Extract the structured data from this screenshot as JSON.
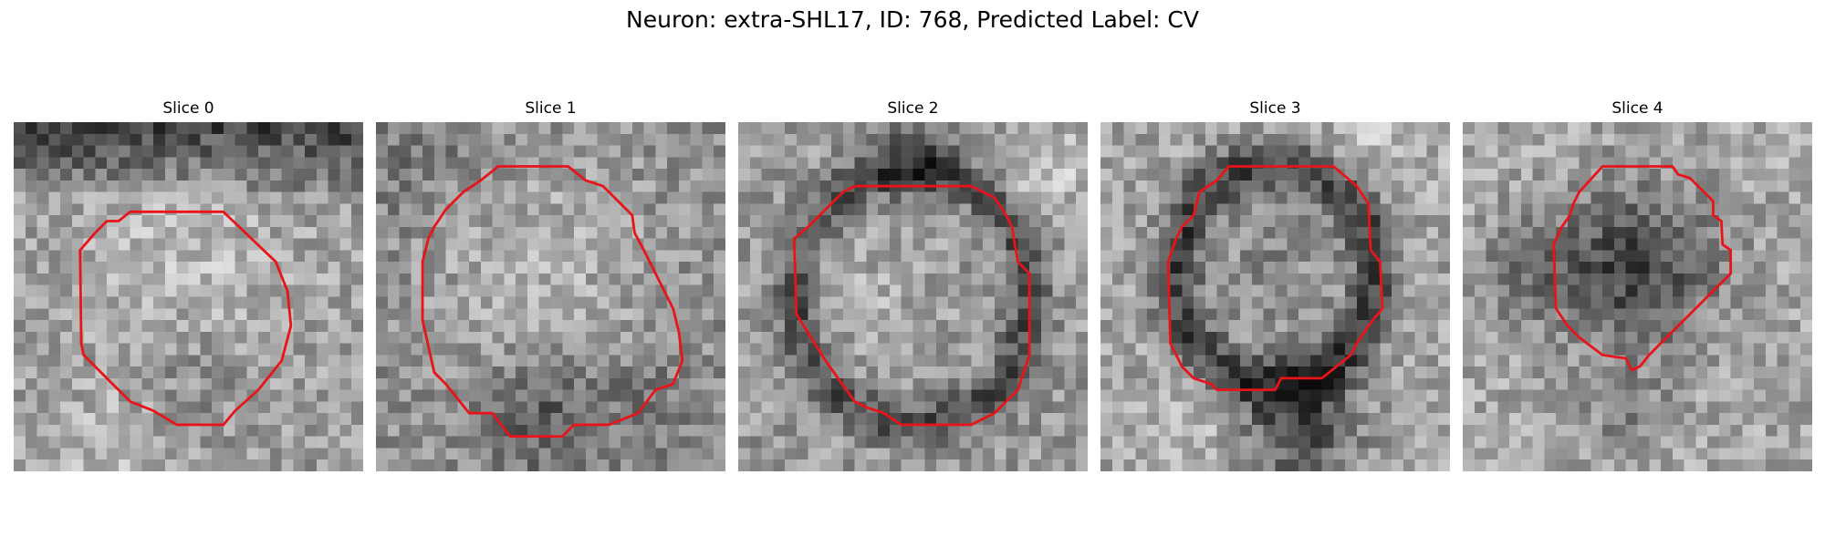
{
  "figure": {
    "title": "Neuron: extra-SHL17, ID: 768, Predicted Label: CV"
  },
  "colors": {
    "contour": "#e8141a",
    "background": "#ffffff"
  },
  "slices": [
    {
      "title": "Slice 0",
      "content": "grayscale EM crop with red contour outlining a bright rounded cell body"
    },
    {
      "title": "Slice 1",
      "content": "grayscale EM crop with red contour outlining a larger bright cell body"
    },
    {
      "title": "Slice 2",
      "content": "grayscale EM crop with red contour outlining a cell body with dark rim"
    },
    {
      "title": "Slice 3",
      "content": "grayscale EM crop with red contour outlining a dark-rimmed cell body"
    },
    {
      "title": "Slice 4",
      "content": "grayscale EM crop with red contour outlining a smaller dark cell body"
    }
  ]
}
